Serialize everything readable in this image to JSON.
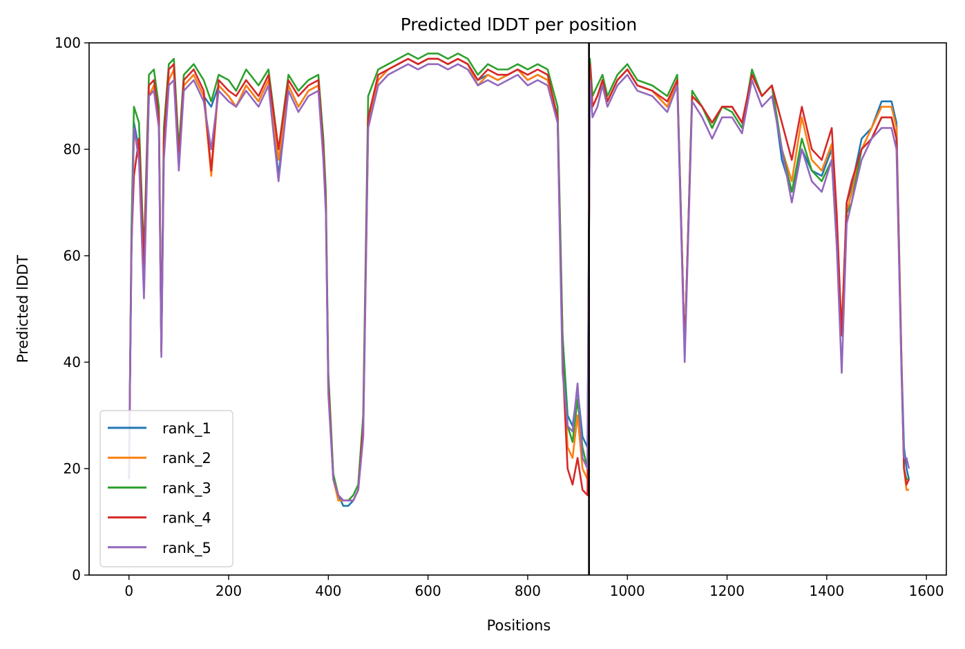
{
  "chart_data": {
    "type": "line",
    "title": "Predicted lDDT per position",
    "xlabel": "Positions",
    "ylabel": "Predicted lDDT",
    "xlim": [
      -80,
      1640
    ],
    "ylim": [
      0,
      100
    ],
    "xticks": [
      0,
      200,
      400,
      600,
      800,
      1000,
      1200,
      1400,
      1600
    ],
    "yticks": [
      0,
      20,
      40,
      60,
      80,
      100
    ],
    "grid": false,
    "legend_placement": "lower-left",
    "vline_x": 923,
    "x": [
      0,
      5,
      10,
      20,
      30,
      40,
      50,
      60,
      65,
      70,
      80,
      90,
      100,
      110,
      130,
      150,
      165,
      180,
      200,
      215,
      235,
      260,
      280,
      300,
      320,
      340,
      360,
      380,
      390,
      395,
      400,
      410,
      420,
      430,
      440,
      450,
      460,
      470,
      480,
      500,
      520,
      540,
      560,
      580,
      600,
      620,
      640,
      660,
      680,
      700,
      720,
      740,
      760,
      780,
      800,
      820,
      840,
      860,
      870,
      880,
      890,
      900,
      910,
      920,
      925,
      930,
      940,
      950,
      960,
      980,
      1000,
      1020,
      1050,
      1080,
      1100,
      1115,
      1130,
      1150,
      1170,
      1190,
      1210,
      1230,
      1250,
      1270,
      1290,
      1310,
      1330,
      1350,
      1370,
      1390,
      1410,
      1420,
      1430,
      1440,
      1450,
      1470,
      1490,
      1510,
      1530,
      1540,
      1550,
      1555,
      1560,
      1565
    ],
    "series": [
      {
        "name": "rank_1",
        "color": "#1f77b4",
        "values": [
          18,
          60,
          85,
          80,
          55,
          90,
          92,
          85,
          42,
          80,
          93,
          95,
          78,
          92,
          94,
          90,
          88,
          92,
          90,
          88,
          92,
          89,
          93,
          75,
          92,
          88,
          91,
          92,
          80,
          70,
          35,
          18,
          15,
          13,
          13,
          14,
          16,
          28,
          85,
          93,
          95,
          96,
          97,
          96,
          97,
          97,
          96,
          97,
          96,
          93,
          94,
          93,
          94,
          95,
          93,
          94,
          93,
          86,
          45,
          30,
          28,
          35,
          26,
          24,
          96,
          88,
          90,
          93,
          89,
          93,
          95,
          92,
          91,
          88,
          93,
          42,
          90,
          88,
          84,
          88,
          88,
          85,
          94,
          90,
          92,
          78,
          72,
          80,
          76,
          75,
          80,
          64,
          45,
          70,
          73,
          82,
          84,
          89,
          89,
          85,
          40,
          24,
          20,
          18
        ]
      },
      {
        "name": "rank_2",
        "color": "#ff7f0e",
        "values": [
          18,
          62,
          83,
          80,
          55,
          90,
          92,
          85,
          42,
          80,
          93,
          95,
          78,
          92,
          94,
          90,
          75,
          92,
          90,
          88,
          92,
          89,
          93,
          78,
          92,
          88,
          91,
          92,
          80,
          70,
          35,
          18,
          14,
          14,
          14,
          14,
          16,
          26,
          84,
          93,
          95,
          96,
          97,
          96,
          97,
          97,
          96,
          97,
          96,
          92,
          94,
          93,
          94,
          95,
          93,
          94,
          93,
          86,
          42,
          24,
          22,
          30,
          20,
          18,
          95,
          88,
          90,
          93,
          89,
          93,
          95,
          92,
          91,
          88,
          93,
          42,
          90,
          88,
          84,
          88,
          88,
          85,
          94,
          90,
          92,
          80,
          74,
          86,
          78,
          76,
          81,
          62,
          47,
          68,
          72,
          80,
          84,
          88,
          88,
          84,
          40,
          20,
          16,
          16
        ]
      },
      {
        "name": "rank_3",
        "color": "#2ca02c",
        "values": [
          18,
          65,
          88,
          85,
          60,
          94,
          95,
          88,
          42,
          84,
          96,
          97,
          80,
          94,
          96,
          93,
          89,
          94,
          93,
          91,
          95,
          92,
          95,
          80,
          94,
          91,
          93,
          94,
          82,
          72,
          38,
          19,
          15,
          14,
          14,
          15,
          17,
          30,
          90,
          95,
          96,
          97,
          98,
          97,
          98,
          98,
          97,
          98,
          97,
          94,
          96,
          95,
          95,
          96,
          95,
          96,
          95,
          88,
          45,
          28,
          25,
          33,
          24,
          20,
          97,
          90,
          92,
          94,
          90,
          94,
          96,
          93,
          92,
          90,
          94,
          42,
          91,
          88,
          84,
          88,
          87,
          84,
          95,
          90,
          92,
          80,
          72,
          82,
          76,
          74,
          78,
          62,
          45,
          68,
          70,
          80,
          82,
          86,
          86,
          82,
          38,
          20,
          18,
          18
        ]
      },
      {
        "name": "rank_4",
        "color": "#d62728",
        "values": [
          18,
          62,
          75,
          82,
          58,
          92,
          93,
          86,
          42,
          82,
          95,
          96,
          78,
          93,
          95,
          91,
          76,
          93,
          91,
          90,
          93,
          90,
          94,
          80,
          93,
          90,
          92,
          93,
          80,
          70,
          36,
          18,
          15,
          14,
          14,
          14,
          16,
          28,
          86,
          94,
          95,
          96,
          97,
          96,
          97,
          97,
          96,
          97,
          96,
          93,
          95,
          94,
          94,
          95,
          94,
          95,
          94,
          86,
          40,
          20,
          17,
          22,
          16,
          15,
          96,
          88,
          90,
          93,
          89,
          93,
          95,
          92,
          91,
          89,
          93,
          42,
          90,
          88,
          85,
          88,
          88,
          85,
          94,
          90,
          92,
          85,
          78,
          88,
          80,
          78,
          84,
          68,
          45,
          70,
          74,
          80,
          82,
          86,
          86,
          82,
          40,
          20,
          17,
          18
        ]
      },
      {
        "name": "rank_5",
        "color": "#9467bd",
        "values": [
          18,
          60,
          84,
          78,
          52,
          90,
          91,
          84,
          41,
          78,
          92,
          93,
          76,
          91,
          93,
          89,
          80,
          91,
          89,
          88,
          91,
          88,
          92,
          74,
          91,
          87,
          90,
          91,
          78,
          68,
          34,
          18,
          15,
          14,
          14,
          14,
          16,
          26,
          84,
          92,
          94,
          95,
          96,
          95,
          96,
          96,
          95,
          96,
          95,
          92,
          93,
          92,
          93,
          94,
          92,
          93,
          92,
          85,
          38,
          28,
          27,
          36,
          22,
          20,
          93,
          86,
          88,
          92,
          88,
          92,
          94,
          91,
          90,
          87,
          92,
          40,
          89,
          86,
          82,
          86,
          86,
          83,
          93,
          88,
          90,
          80,
          70,
          80,
          74,
          72,
          78,
          62,
          38,
          66,
          70,
          78,
          82,
          84,
          84,
          80,
          38,
          22,
          22,
          20
        ]
      }
    ]
  }
}
